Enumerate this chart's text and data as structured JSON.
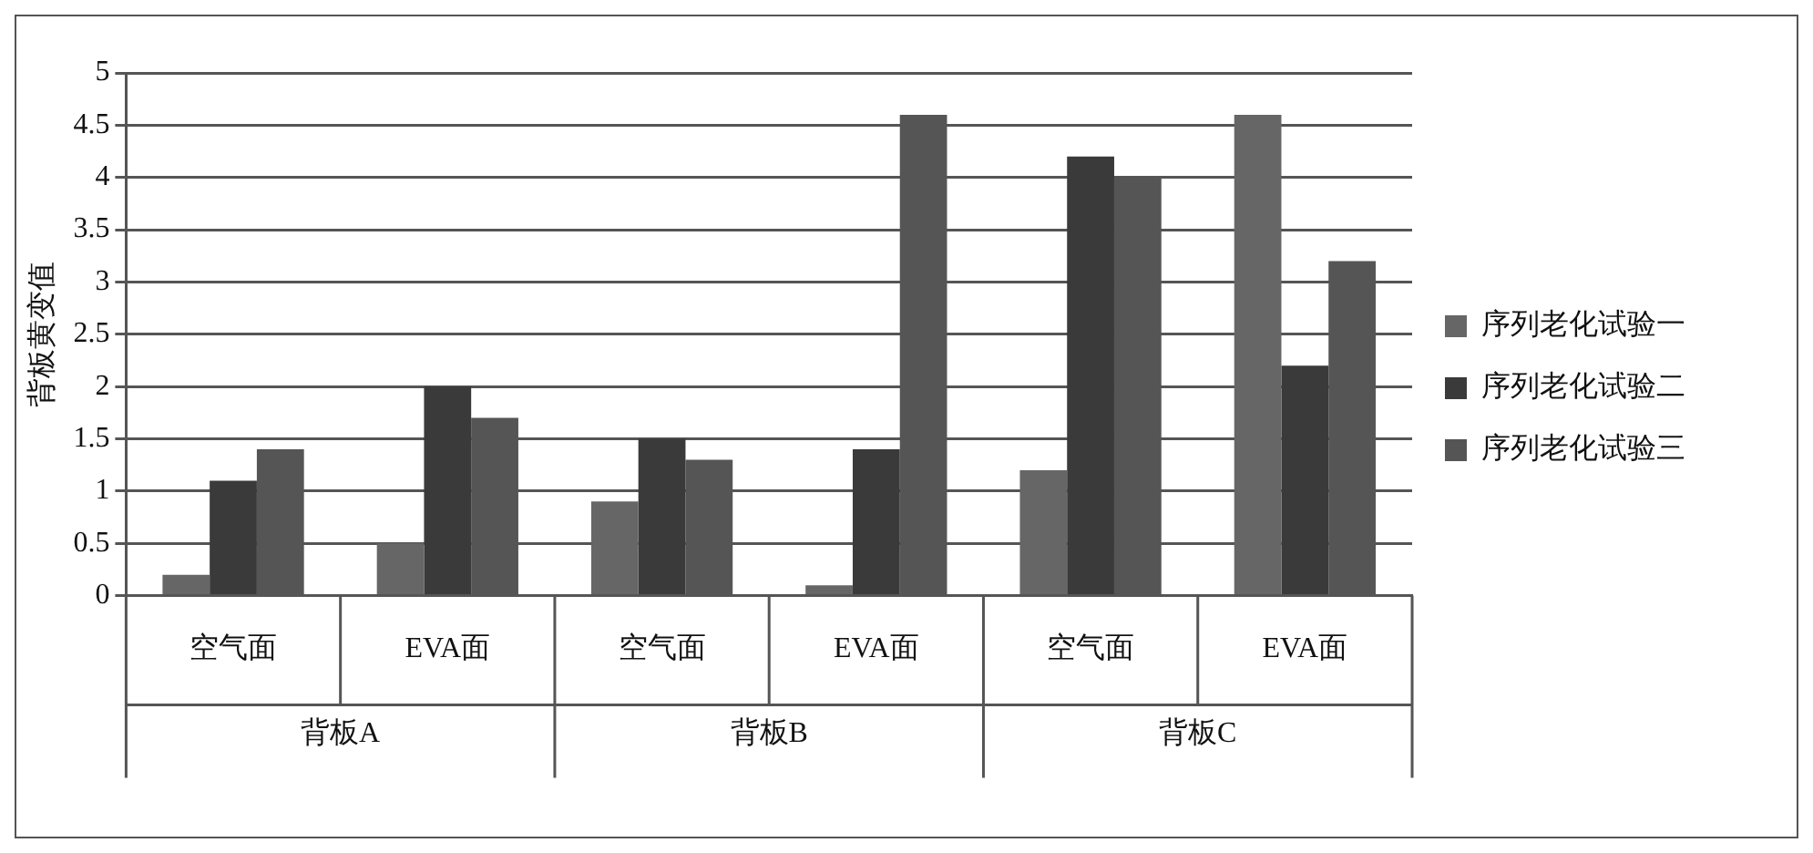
{
  "chart_data": {
    "type": "bar",
    "ylabel": "背板黄变值",
    "categories": [
      "空气面",
      "EVA面",
      "空气面",
      "EVA面",
      "空气面",
      "EVA面"
    ],
    "annotations": [
      "背板A",
      "背板B",
      "背板C"
    ],
    "series": [
      {
        "name": "序列老化试验一",
        "color": "#666666",
        "values": [
          0.2,
          0.5,
          0.9,
          0.1,
          1.2,
          4.6
        ]
      },
      {
        "name": "序列老化试验二",
        "color": "#3a3a3a",
        "values": [
          1.1,
          2.0,
          1.5,
          1.4,
          4.2,
          2.2
        ]
      },
      {
        "name": "序列老化试验三",
        "color": "#555555",
        "values": [
          1.4,
          1.7,
          1.3,
          4.6,
          4.0,
          3.2
        ]
      }
    ],
    "ylim": [
      0,
      5
    ],
    "yticks": [
      0,
      0.5,
      1,
      1.5,
      2,
      2.5,
      3,
      3.5,
      4,
      4.5,
      5
    ],
    "grid": "y",
    "legend": "right"
  }
}
